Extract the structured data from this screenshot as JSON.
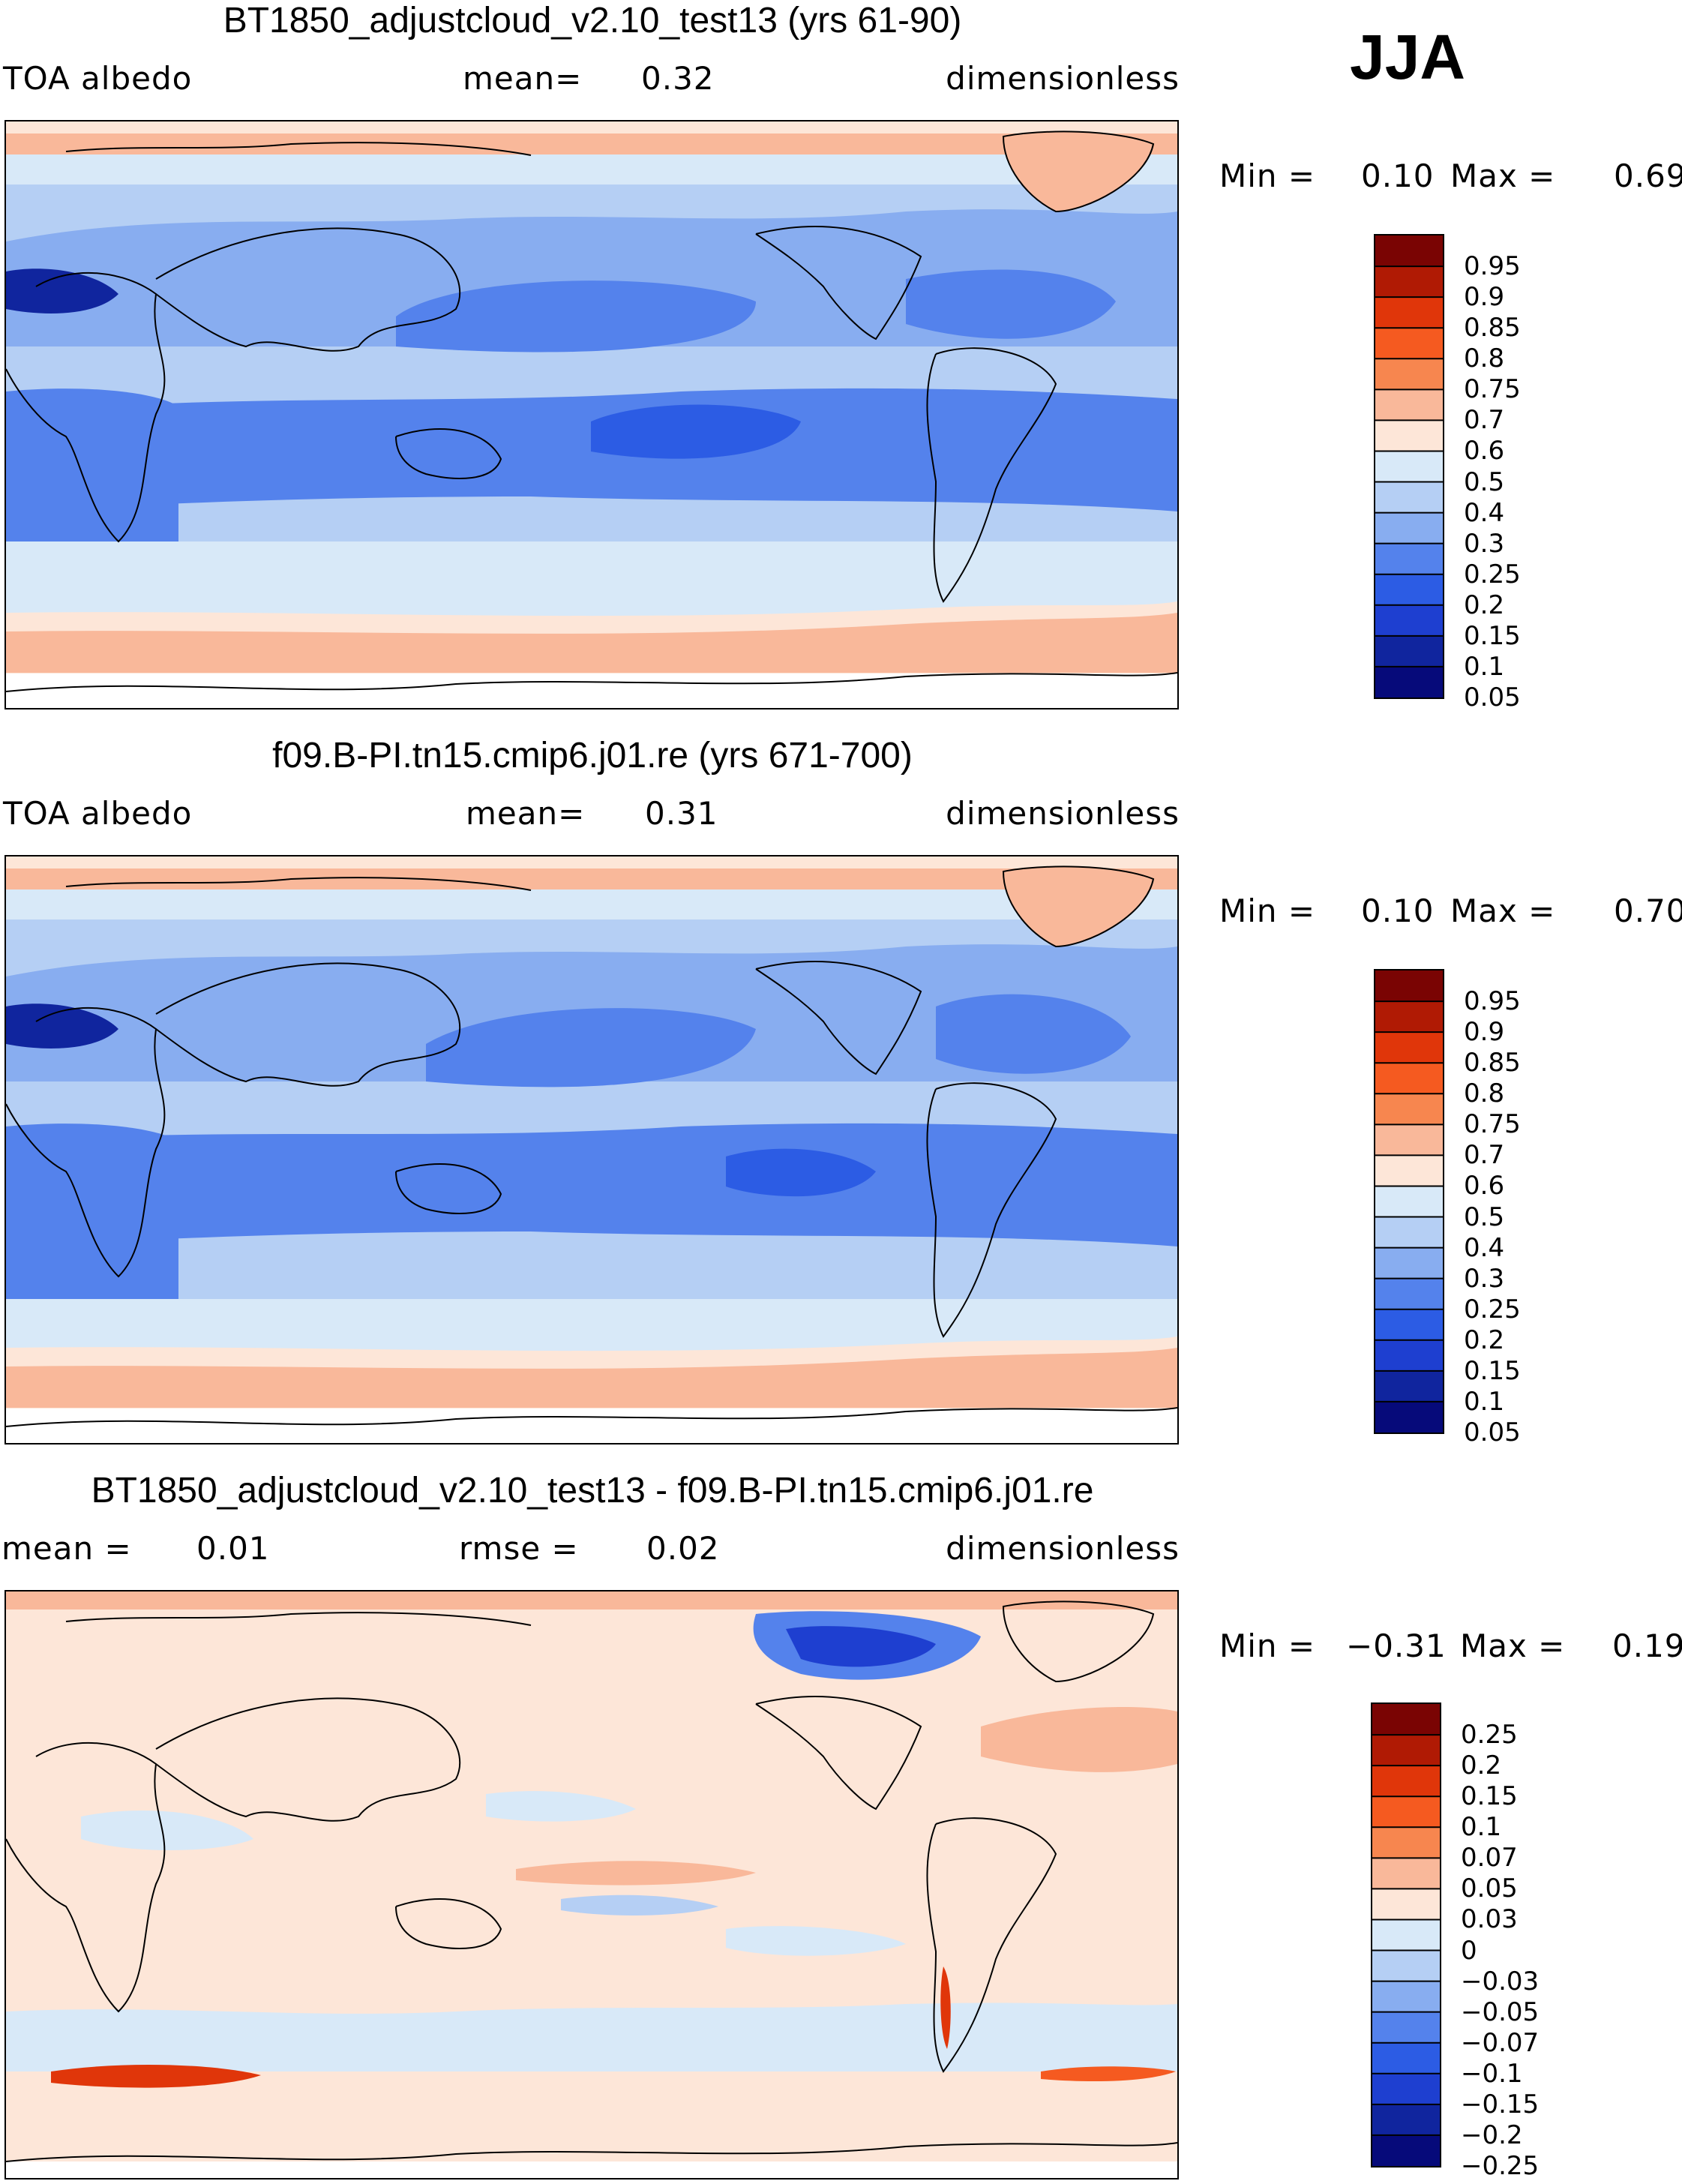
{
  "season": "JJA",
  "panels": [
    {
      "id": "top",
      "title": "BT1850_adjustcloud_v2.10_test13 (yrs 61-90)",
      "left_label": "TOA albedo",
      "mid_label": "mean=",
      "mid_value": "0.32",
      "units": "dimensionless",
      "min_label": "Min =",
      "min_value": "0.10",
      "max_label": "Max =",
      "max_value": "0.69",
      "colorbar_ticks": [
        "0.95",
        "0.9",
        "0.85",
        "0.8",
        "0.75",
        "0.7",
        "0.6",
        "0.5",
        "0.4",
        "0.3",
        "0.25",
        "0.2",
        "0.15",
        "0.1",
        "0.05"
      ]
    },
    {
      "id": "middle",
      "title": "f09.B-PI.tn15.cmip6.j01.re (yrs 671-700)",
      "left_label": "TOA albedo",
      "mid_label": "mean=",
      "mid_value": "0.31",
      "units": "dimensionless",
      "min_label": "Min =",
      "min_value": "0.10",
      "max_label": "Max =",
      "max_value": "0.70",
      "colorbar_ticks": [
        "0.95",
        "0.9",
        "0.85",
        "0.8",
        "0.75",
        "0.7",
        "0.6",
        "0.5",
        "0.4",
        "0.3",
        "0.25",
        "0.2",
        "0.15",
        "0.1",
        "0.05"
      ]
    },
    {
      "id": "bottom",
      "title": "BT1850_adjustcloud_v2.10_test13 - f09.B-PI.tn15.cmip6.j01.re",
      "left_label": "mean =",
      "left_value": "0.01",
      "mid_label": "rmse =",
      "mid_value": "0.02",
      "units": "dimensionless",
      "min_label": "Min =",
      "min_value": "−0.31",
      "max_label": "Max =",
      "max_value": "0.19",
      "colorbar_ticks": [
        "0.25",
        "0.2",
        "0.15",
        "0.1",
        "0.07",
        "0.05",
        "0.03",
        "0",
        "−0.03",
        "−0.05",
        "−0.07",
        "−0.1",
        "−0.15",
        "−0.2",
        "−0.25"
      ]
    }
  ],
  "colors": {
    "abs_scale": [
      "#7a0403",
      "#b01a04",
      "#e0360a",
      "#f55a20",
      "#f7864f",
      "#f9b89a",
      "#fde6d8",
      "#d8e9f8",
      "#b5cff4",
      "#88adf0",
      "#5482ec",
      "#2c5ce4",
      "#1e3fd0",
      "#10259e",
      "#060a7a"
    ],
    "diff_scale": [
      "#7a0403",
      "#b01a04",
      "#e0360a",
      "#f55a20",
      "#f7864f",
      "#f9b89a",
      "#fde6d8",
      "#d8e9f8",
      "#b5cff4",
      "#88adf0",
      "#5482ec",
      "#2c5ce4",
      "#1e3fd0",
      "#10259e",
      "#060a7a"
    ]
  }
}
